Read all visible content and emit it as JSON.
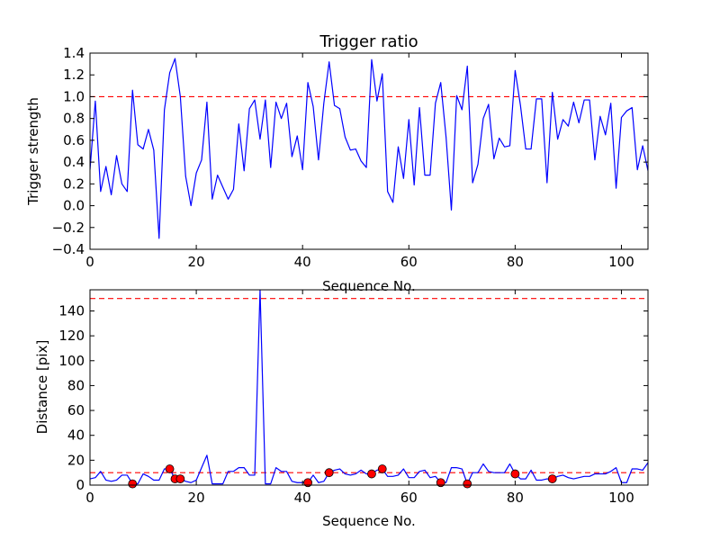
{
  "chart_data": [
    {
      "type": "line",
      "title": "Trigger ratio",
      "xlabel": "Sequence No.",
      "ylabel": "Trigger strength",
      "xlim": [
        0,
        105
      ],
      "ylim": [
        -0.4,
        1.4
      ],
      "xticks": [
        "0",
        "20",
        "40",
        "60",
        "80",
        "100"
      ],
      "yticks": [
        "−0.4",
        "−0.2",
        "0.0",
        "0.2",
        "0.4",
        "0.6",
        "0.8",
        "1.0",
        "1.2",
        "1.4"
      ],
      "grid": false,
      "colors": {
        "line": "#0000ff",
        "threshold": "#ff0000"
      },
      "series": [
        {
          "x": [
            0,
            1,
            2,
            3,
            4,
            5,
            6,
            7,
            8,
            9,
            10,
            11,
            12,
            13,
            14,
            15,
            16,
            17,
            18,
            19,
            20,
            21,
            22,
            23,
            24,
            25,
            26,
            27,
            28,
            29,
            30,
            31,
            32,
            33,
            34,
            35,
            36,
            37,
            38,
            39,
            40,
            41,
            42,
            43,
            44,
            45,
            46,
            47,
            48,
            49,
            50,
            51,
            52,
            53,
            54,
            55,
            56,
            57,
            58,
            59,
            60,
            61,
            62,
            63,
            64,
            65,
            66,
            67,
            68,
            69,
            70,
            71,
            72,
            73,
            74,
            75,
            76,
            77,
            78,
            79,
            80,
            81,
            82,
            83,
            84,
            85,
            86,
            87,
            88,
            89,
            90,
            91,
            92,
            93,
            94,
            95,
            96,
            97,
            98,
            99,
            100,
            101,
            102,
            103,
            104,
            105
          ],
          "y": [
            0.33,
            0.96,
            0.13,
            0.36,
            0.1,
            0.46,
            0.2,
            0.13,
            1.06,
            0.56,
            0.52,
            0.7,
            0.51,
            -0.3,
            0.88,
            1.22,
            1.35,
            1.0,
            0.27,
            0.0,
            0.3,
            0.42,
            0.95,
            0.06,
            0.28,
            0.17,
            0.06,
            0.15,
            0.75,
            0.32,
            0.89,
            0.97,
            0.61,
            0.97,
            0.35,
            0.95,
            0.8,
            0.94,
            0.45,
            0.64,
            0.33,
            1.13,
            0.91,
            0.42,
            0.94,
            1.32,
            0.92,
            0.89,
            0.63,
            0.51,
            0.52,
            0.41,
            0.35,
            1.34,
            0.96,
            1.21,
            0.13,
            0.03,
            0.54,
            0.25,
            0.79,
            0.19,
            0.9,
            0.28,
            0.28,
            0.94,
            1.13,
            0.63,
            -0.04,
            1.01,
            0.88,
            1.28,
            0.21,
            0.38,
            0.8,
            0.93,
            0.43,
            0.62,
            0.54,
            0.55,
            1.24,
            0.92,
            0.52,
            0.52,
            0.98,
            0.98,
            0.21,
            1.04,
            0.61,
            0.79,
            0.73,
            0.95,
            0.76,
            0.97,
            0.97,
            0.42,
            0.82,
            0.65,
            0.94,
            0.16,
            0.81,
            0.87,
            0.9,
            0.33,
            0.55,
            0.32
          ]
        }
      ],
      "hlines": [
        1.0
      ]
    },
    {
      "type": "line",
      "title": "",
      "xlabel": "Sequence No.",
      "ylabel": "Distance [pix]",
      "xlim": [
        0,
        105
      ],
      "ylim": [
        0,
        157
      ],
      "xticks": [
        "0",
        "20",
        "40",
        "60",
        "80",
        "100"
      ],
      "yticks": [
        "0",
        "20",
        "40",
        "60",
        "80",
        "100",
        "120",
        "140"
      ],
      "grid": false,
      "colors": {
        "line": "#0000ff",
        "threshold": "#ff0000",
        "marker": "#ff0000"
      },
      "series": [
        {
          "x": [
            0,
            1,
            2,
            3,
            4,
            5,
            6,
            7,
            8,
            9,
            10,
            11,
            12,
            13,
            14,
            15,
            16,
            17,
            18,
            19,
            20,
            21,
            22,
            23,
            24,
            25,
            26,
            27,
            28,
            29,
            30,
            31,
            32,
            33,
            34,
            35,
            36,
            37,
            38,
            39,
            40,
            41,
            42,
            43,
            44,
            45,
            46,
            47,
            48,
            49,
            50,
            51,
            52,
            53,
            54,
            55,
            56,
            57,
            58,
            59,
            60,
            61,
            62,
            63,
            64,
            65,
            66,
            67,
            68,
            69,
            70,
            71,
            72,
            73,
            74,
            75,
            76,
            77,
            78,
            79,
            80,
            81,
            82,
            83,
            84,
            85,
            86,
            87,
            88,
            89,
            90,
            91,
            92,
            93,
            94,
            95,
            96,
            97,
            98,
            99,
            100,
            101,
            102,
            103,
            104,
            105
          ],
          "y": [
            5,
            6,
            11,
            4,
            3,
            4,
            8,
            8,
            1,
            1,
            9,
            7,
            4,
            4,
            13,
            13,
            5,
            5,
            3,
            2,
            4,
            14,
            24,
            1,
            1,
            1,
            11,
            11,
            14,
            14,
            8,
            8,
            157,
            1,
            1,
            14,
            11,
            11,
            3,
            2,
            2,
            2,
            8,
            2,
            3,
            10,
            12,
            13,
            9,
            8,
            9,
            12,
            9,
            9,
            12,
            13,
            7,
            7,
            8,
            13,
            6,
            6,
            11,
            12,
            6,
            7,
            2,
            2,
            14,
            14,
            13,
            1,
            10,
            10,
            17,
            11,
            10,
            10,
            10,
            17,
            9,
            5,
            5,
            12,
            4,
            4,
            5,
            5,
            7,
            8,
            6,
            5,
            6,
            7,
            7,
            9,
            9,
            9,
            11,
            14,
            2,
            2,
            13,
            13,
            12,
            18
          ]
        }
      ],
      "markers": {
        "x": [
          8,
          15,
          16,
          17,
          41,
          45,
          53,
          55,
          66,
          71,
          80,
          87
        ],
        "y": [
          1,
          13,
          5,
          5,
          2,
          10,
          9,
          13,
          2,
          1,
          9,
          5
        ]
      },
      "hlines": [
        150,
        10
      ]
    }
  ]
}
